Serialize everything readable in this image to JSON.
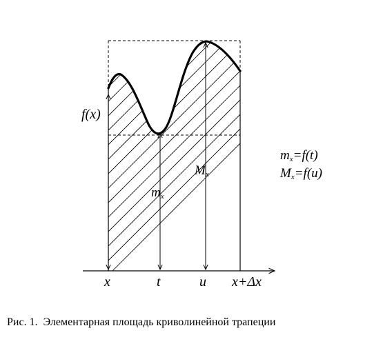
{
  "figure": {
    "labels": {
      "f_label": "f(x)",
      "m_label_main": "m",
      "m_label_sub": "x",
      "M_label_main": "M",
      "M_label_sub": "x",
      "x_tick": "x",
      "t_tick": "t",
      "u_tick": "u",
      "xdx_tick": "x+Δx"
    },
    "formulas": {
      "line1_main": "m",
      "line1_sub": "x",
      "line1_rest": "=f(t)",
      "line2_main": "M",
      "line2_sub": "x",
      "line2_rest": "=f(u)"
    },
    "colors": {
      "ink": "#000000",
      "background": "#ffffff"
    }
  },
  "caption": {
    "text": "Рис. 1.  Элементарная площадь криволинейной трапеции"
  }
}
